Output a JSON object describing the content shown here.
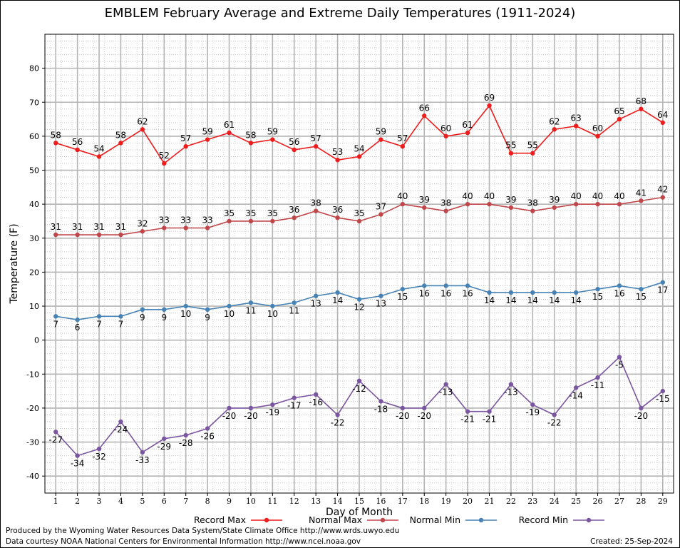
{
  "chart_data": {
    "type": "line",
    "title": "EMBLEM February Average and Extreme Daily Temperatures (1911-2024)",
    "xlabel": "Day of Month",
    "ylabel": "Temperature (F)",
    "x": [
      1,
      2,
      3,
      4,
      5,
      6,
      7,
      8,
      9,
      10,
      11,
      12,
      13,
      14,
      15,
      16,
      17,
      18,
      19,
      20,
      21,
      22,
      23,
      24,
      25,
      26,
      27,
      28,
      29
    ],
    "xlim": [
      0.5,
      29.5
    ],
    "ylim": [
      -45,
      90
    ],
    "yticks": [
      -40,
      -30,
      -20,
      -10,
      0,
      10,
      20,
      30,
      40,
      50,
      60,
      70,
      80
    ],
    "grid": true,
    "legend_position": "bottom",
    "series": [
      {
        "name": "Record Max",
        "color": "#ee1c1c",
        "values": [
          58,
          56,
          54,
          58,
          62,
          52,
          57,
          59,
          61,
          58,
          59,
          56,
          57,
          53,
          54,
          59,
          57,
          66,
          60,
          61,
          69,
          55,
          55,
          62,
          63,
          60,
          65,
          68,
          64
        ]
      },
      {
        "name": "Normal Max",
        "color": "#c0464a",
        "values": [
          31,
          31,
          31,
          31,
          32,
          33,
          33,
          33,
          35,
          35,
          35,
          36,
          38,
          36,
          35,
          37,
          40,
          39,
          38,
          40,
          40,
          39,
          38,
          39,
          40,
          40,
          40,
          41,
          42
        ]
      },
      {
        "name": "Normal Min",
        "color": "#4682b4",
        "values": [
          7,
          6,
          7,
          7,
          9,
          9,
          10,
          9,
          10,
          11,
          10,
          11,
          13,
          14,
          12,
          13,
          15,
          16,
          16,
          16,
          14,
          14,
          14,
          14,
          14,
          15,
          16,
          15,
          17
        ]
      },
      {
        "name": "Record Min",
        "color": "#7b56a0",
        "values": [
          -27,
          -34,
          -32,
          -24,
          -33,
          -29,
          -28,
          -26,
          -20,
          -20,
          -19,
          -17,
          -16,
          -22,
          -12,
          -18,
          -20,
          -20,
          -13,
          -21,
          -21,
          -13,
          -19,
          -22,
          -14,
          -11,
          -5,
          -20,
          -15
        ]
      }
    ]
  },
  "footer": {
    "credit_line1": "Produced by the Wyoming Water Resources Data System/State Climate Office http://www.wrds.uwyo.edu",
    "credit_line2": "Data courtesy NOAA National Centers for Environmental Information http://www.ncei.noaa.gov",
    "created": "Created:  25-Sep-2024"
  }
}
